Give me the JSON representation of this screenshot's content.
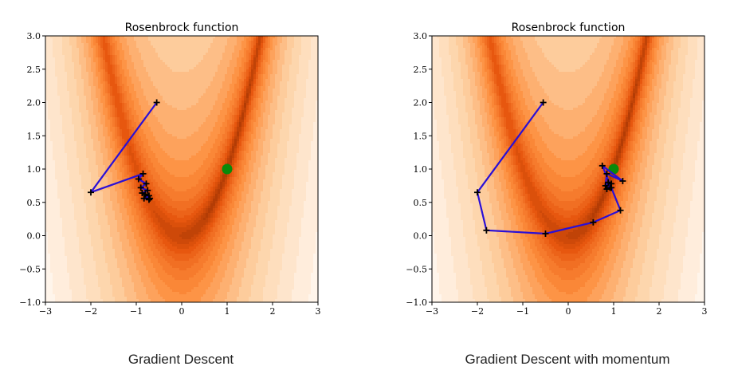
{
  "chart_data": [
    {
      "type": "contour",
      "title": "Rosenbrock function",
      "caption": "Gradient Descent",
      "xlim": [
        -3,
        3
      ],
      "ylim": [
        -1,
        3
      ],
      "xticks": [
        "−3",
        "−2",
        "−1",
        "0",
        "1",
        "2",
        "3"
      ],
      "yticks": [
        "−1.0",
        "−0.5",
        "0.0",
        "0.5",
        "1.0",
        "1.5",
        "2.0",
        "2.5",
        "3.0"
      ],
      "colormap": "oranges",
      "path_color": "#2a0fd6",
      "minimum": {
        "x": 1,
        "y": 1,
        "color": "#0a8a0a"
      },
      "path": [
        [
          -0.55,
          2.0
        ],
        [
          -2.0,
          0.65
        ],
        [
          -0.85,
          0.93
        ],
        [
          -0.95,
          0.85
        ],
        [
          -0.78,
          0.78
        ],
        [
          -0.9,
          0.72
        ],
        [
          -0.75,
          0.68
        ],
        [
          -0.87,
          0.64
        ],
        [
          -0.72,
          0.6
        ],
        [
          -0.83,
          0.56
        ],
        [
          -0.72,
          0.54
        ],
        [
          -0.8,
          0.62
        ],
        [
          -0.7,
          0.56
        ]
      ]
    },
    {
      "type": "contour",
      "title": "Rosenbrock function",
      "caption": "Gradient Descent with momentum",
      "xlim": [
        -3,
        3
      ],
      "ylim": [
        -1,
        3
      ],
      "xticks": [
        "−3",
        "−2",
        "−1",
        "0",
        "1",
        "2",
        "3"
      ],
      "yticks": [
        "−1.0",
        "−0.5",
        "0.0",
        "0.5",
        "1.0",
        "1.5",
        "2.0",
        "2.5",
        "3.0"
      ],
      "colormap": "oranges",
      "path_color": "#2a0fd6",
      "minimum": {
        "x": 1,
        "y": 1,
        "color": "#0a8a0a"
      },
      "path": [
        [
          -0.55,
          2.0
        ],
        [
          -2.0,
          0.65
        ],
        [
          -1.8,
          0.08
        ],
        [
          -0.5,
          0.03
        ],
        [
          0.55,
          0.2
        ],
        [
          1.15,
          0.38
        ],
        [
          0.95,
          0.72
        ],
        [
          0.75,
          1.05
        ],
        [
          1.2,
          0.82
        ],
        [
          0.85,
          0.93
        ],
        [
          0.82,
          0.75
        ],
        [
          0.88,
          0.8
        ],
        [
          0.92,
          0.72
        ],
        [
          0.85,
          0.7
        ],
        [
          0.95,
          0.78
        ]
      ]
    }
  ]
}
